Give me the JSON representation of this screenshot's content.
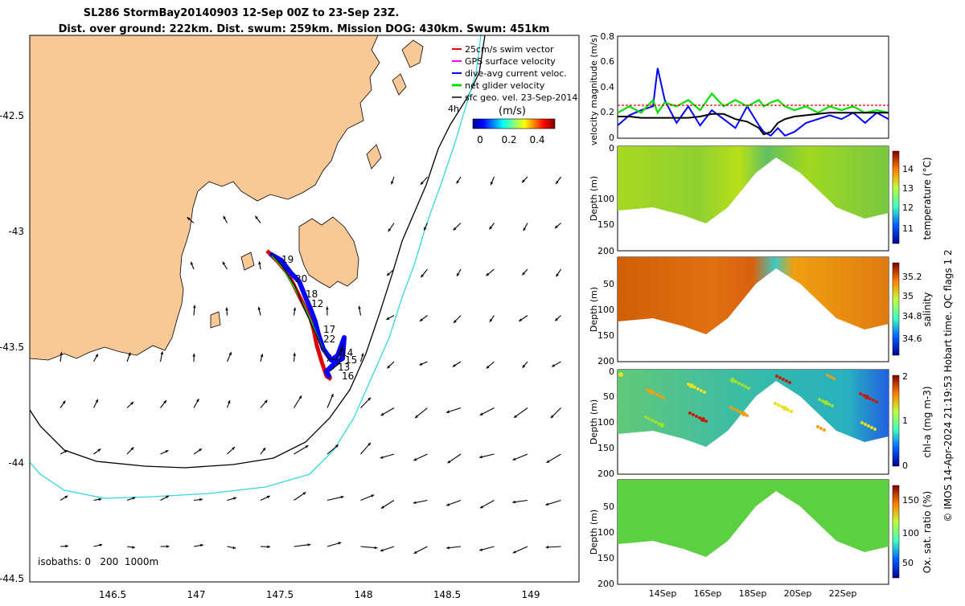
{
  "title": {
    "line1": "SL286 StormBay20140903 12-Sep 00Z to 23-Sep 23Z.",
    "line2": "Dist. over ground: 222km. Dist. swum: 259km. Mission DOG: 430km. Swum: 451km"
  },
  "map": {
    "legend": [
      {
        "label": "25cm/s swim vector",
        "color": "#e00000"
      },
      {
        "label": "GPS surface velocity",
        "color": "#ff00ff"
      },
      {
        "label": "dive-avg current veloc.",
        "color": "#0000ff"
      },
      {
        "label": "net glider velocity",
        "color": "#00e000"
      },
      {
        "label": "sfc geo. vel. 23-Sep-2014",
        "color": "#000000"
      }
    ],
    "legend_suffix": "4h",
    "colorbar": {
      "unit": "(m/s)",
      "ticks": [
        "0",
        "0.2",
        "0.4"
      ]
    },
    "isobath_text": "isobaths: 0   200  1000m",
    "isobath_colors": {
      "200": "#000000",
      "1000": "#30d8e0"
    },
    "land_color": "#f8c896",
    "x_ticks": [
      "146.5",
      "147",
      "147.5",
      "148",
      "148.5",
      "149"
    ],
    "y_ticks": [
      "-42.5",
      "-43",
      "-43.5",
      "-44",
      "-44.5"
    ],
    "day_labels": [
      "19",
      "20",
      "18",
      "12",
      "17",
      "22",
      "14",
      "15",
      "13",
      "16"
    ]
  },
  "side_panels": {
    "date_ticks": [
      "14Sep",
      "16Sep",
      "18Sep",
      "20Sep",
      "22Sep"
    ],
    "depth_label": "Depth (m)",
    "depth_ticks": [
      "0",
      "50",
      "100",
      "150",
      "200"
    ],
    "sections": [
      {
        "cbar_label": "temperature (°C)",
        "ticks": [
          "11",
          "12",
          "13",
          "14"
        ]
      },
      {
        "cbar_label": "salinity",
        "ticks": [
          "34.6",
          "34.8",
          "35",
          "35.2"
        ]
      },
      {
        "cbar_label": "chl-a (mg m-3)",
        "ticks": [
          "0",
          "1",
          "2"
        ]
      },
      {
        "cbar_label": "Ox. sat. ratio (%)",
        "ticks": [
          "50",
          "100",
          "150"
        ]
      }
    ]
  },
  "velocity_panel": {
    "ylabel": "velocity magnitude (m/s)",
    "y_ticks": [
      "0",
      "0.2",
      "0.4",
      "0.6",
      "0.8"
    ]
  },
  "credit": "© IMOS 14-Apr-2024 21:19:53 Hobart time. QC flags 1  2",
  "chart_data": {
    "type": "line",
    "title": "",
    "xlabel": "",
    "ylabel": "velocity magnitude (m/s)",
    "ylim": [
      0,
      0.8
    ],
    "x": [
      "12.5",
      "13",
      "13.5",
      "14",
      "14.2",
      "14.5",
      "15",
      "15.5",
      "16",
      "16.5",
      "17",
      "17.5",
      "18",
      "18.5",
      "18.7",
      "19",
      "19.3",
      "19.6",
      "20",
      "20.5",
      "21",
      "21.5",
      "22",
      "22.5",
      "23",
      "23.5",
      "24"
    ],
    "series": [
      {
        "name": "dive-avg current veloc.",
        "color": "#0000ff",
        "values": [
          0.1,
          0.18,
          0.22,
          0.25,
          0.55,
          0.3,
          0.12,
          0.25,
          0.1,
          0.22,
          0.15,
          0.08,
          0.25,
          0.1,
          0.05,
          0.02,
          0.08,
          0.02,
          0.05,
          0.12,
          0.15,
          0.18,
          0.15,
          0.2,
          0.12,
          0.2,
          0.15
        ]
      },
      {
        "name": "net glider velocity",
        "color": "#00e000",
        "values": [
          0.2,
          0.25,
          0.2,
          0.3,
          0.2,
          0.28,
          0.25,
          0.3,
          0.22,
          0.35,
          0.25,
          0.3,
          0.25,
          0.3,
          0.25,
          0.28,
          0.3,
          0.25,
          0.22,
          0.25,
          0.2,
          0.25,
          0.22,
          0.25,
          0.2,
          0.22,
          0.2
        ]
      },
      {
        "name": "sfc geo. vel. 23-Sep-2014",
        "color": "#000000",
        "values": [
          0.17,
          0.17,
          0.16,
          0.16,
          0.16,
          0.16,
          0.16,
          0.16,
          0.17,
          0.19,
          0.19,
          0.15,
          0.13,
          0.08,
          0.03,
          0.05,
          0.12,
          0.15,
          0.17,
          0.18,
          0.19,
          0.2,
          0.2,
          0.2,
          0.2,
          0.2,
          0.2
        ]
      }
    ]
  }
}
